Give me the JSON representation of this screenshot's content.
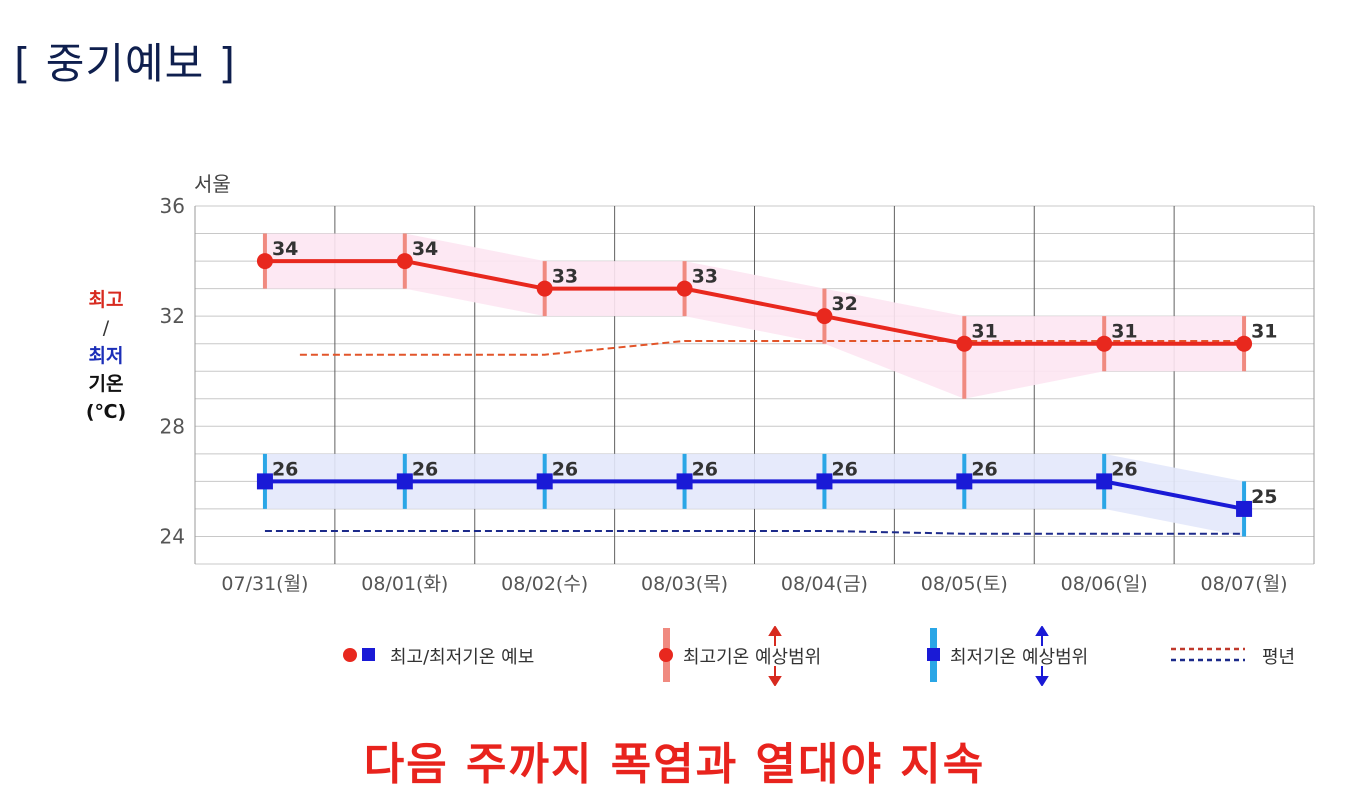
{
  "page": {
    "title": "[ 중기예보 ]",
    "headline": "다음 주까지 폭염과 열대야 지속"
  },
  "y_axis_legend": {
    "max_label": "최고",
    "slash": "/",
    "min_label": "최저",
    "suffix": "기온",
    "unit": "(℃)"
  },
  "legend": {
    "forecast": "최고/최저기온 예보",
    "max_range": "최고기온 예상범위",
    "min_range": "최저기온 예상범위",
    "normal": "평년"
  },
  "colors": {
    "max_line": "#e8281e",
    "max_range_bar": "#f08a80",
    "max_band": "#fde6f2",
    "min_line": "#1a1ad6",
    "min_range_bar": "#2aa6e6",
    "min_band": "#e3e8fb",
    "normal_max": "#e2552a",
    "normal_min": "#1c2a8a",
    "grid": "#c8c8c8",
    "grid_major": "#606060"
  },
  "chart_data": {
    "type": "line",
    "title": "서울",
    "categories": [
      "07/31(월)",
      "08/01(화)",
      "08/02(수)",
      "08/03(목)",
      "08/04(금)",
      "08/05(토)",
      "08/06(일)",
      "08/07(월)"
    ],
    "ylim": [
      23,
      36
    ],
    "yticks": [
      24,
      28,
      32,
      36
    ],
    "grid": true,
    "series": [
      {
        "kind": "max",
        "values": [
          34,
          34,
          33,
          33,
          32,
          31,
          31,
          31
        ],
        "range_low": [
          33,
          33,
          32,
          32,
          31,
          29,
          30,
          30
        ],
        "range_high": [
          35,
          35,
          34,
          34,
          33,
          32,
          32,
          32
        ]
      },
      {
        "kind": "min",
        "values": [
          26,
          26,
          26,
          26,
          26,
          26,
          26,
          25
        ],
        "range_low": [
          25,
          25,
          25,
          25,
          25,
          25,
          25,
          24
        ],
        "range_high": [
          27,
          27,
          27,
          27,
          27,
          27,
          27,
          26
        ]
      }
    ],
    "normal_max": [
      30.6,
      30.6,
      30.6,
      31.1,
      31.1,
      31.1,
      31.1,
      31.1
    ],
    "normal_min": [
      24.2,
      24.2,
      24.2,
      24.2,
      24.2,
      24.1,
      24.1,
      24.1
    ]
  }
}
